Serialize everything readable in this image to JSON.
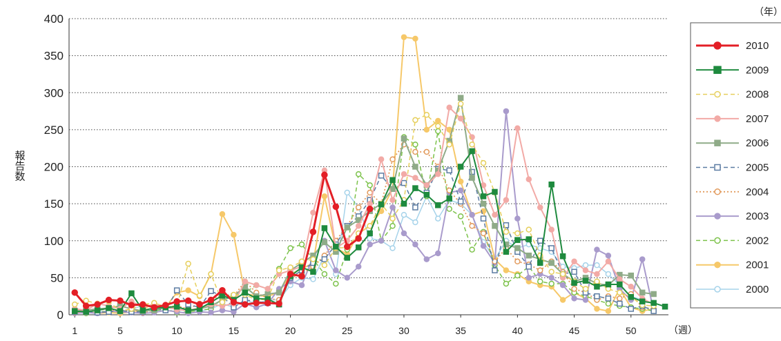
{
  "chart_data": {
    "type": "line",
    "y_label": "報告数",
    "x_label": "（週）",
    "legend_title": "（年）",
    "x": [
      1,
      2,
      3,
      4,
      5,
      6,
      7,
      8,
      9,
      10,
      11,
      12,
      13,
      14,
      15,
      16,
      17,
      18,
      19,
      20,
      21,
      22,
      23,
      24,
      25,
      26,
      27,
      28,
      29,
      30,
      31,
      32,
      33,
      34,
      35,
      36,
      37,
      38,
      39,
      40,
      41,
      42,
      43,
      44,
      45,
      46,
      47,
      48,
      49,
      50,
      51,
      52,
      53
    ],
    "xlim": [
      0.5,
      53.3
    ],
    "xticks": [
      1,
      5,
      10,
      15,
      20,
      25,
      30,
      35,
      40,
      45,
      50
    ],
    "ylim": [
      0,
      400
    ],
    "yticks": [
      0,
      50,
      100,
      150,
      200,
      250,
      300,
      350,
      400
    ],
    "grid": true,
    "legend": "right",
    "series": [
      {
        "name": "2010",
        "color": "#e31f26",
        "style": "solid",
        "marker": "circle",
        "filled": true,
        "width": 3,
        "values": [
          30,
          12,
          14,
          20,
          19,
          13,
          14,
          10,
          13,
          18,
          19,
          14,
          20,
          33,
          17,
          14,
          16,
          16,
          15,
          55,
          52,
          112,
          189,
          146,
          92,
          103,
          143,
          null,
          null,
          null,
          null,
          null,
          null,
          null,
          null,
          null,
          null,
          null,
          null,
          null,
          null,
          null,
          null,
          null,
          null,
          null,
          null,
          null,
          null,
          null,
          null,
          null,
          null
        ]
      },
      {
        "name": "2009",
        "color": "#1e8a3e",
        "style": "solid",
        "marker": "square",
        "filled": true,
        "width": 2,
        "values": [
          5,
          4,
          6,
          9,
          5,
          29,
          6,
          9,
          10,
          11,
          6,
          8,
          17,
          26,
          20,
          30,
          22,
          21,
          14,
          52,
          64,
          58,
          117,
          92,
          77,
          91,
          110,
          149,
          182,
          150,
          171,
          162,
          148,
          157,
          200,
          221,
          160,
          166,
          85,
          101,
          102,
          70,
          176,
          79,
          43,
          46,
          38,
          41,
          41,
          24,
          18,
          16,
          11
        ]
      },
      {
        "name": "2008",
        "color": "#e6cf5c",
        "style": "dashed",
        "marker": "circle",
        "filled": false,
        "width": 1.5,
        "values": [
          14,
          19,
          15,
          18,
          5,
          8,
          14,
          16,
          11,
          12,
          69,
          26,
          55,
          17,
          27,
          27,
          20,
          21,
          60,
          64,
          72,
          75,
          67,
          90,
          91,
          110,
          120,
          150,
          130,
          155,
          263,
          270,
          255,
          230,
          285,
          230,
          205,
          165,
          112,
          110,
          115,
          80,
          58,
          55,
          45,
          35,
          45,
          35,
          30,
          24,
          13,
          12,
          null
        ]
      },
      {
        "name": "2007",
        "color": "#f2aaa6",
        "style": "solid",
        "marker": "circle",
        "filled": true,
        "width": 2,
        "values": [
          8,
          6,
          15,
          12,
          8,
          18,
          10,
          14,
          12,
          7,
          6,
          9,
          14,
          12,
          15,
          45,
          40,
          35,
          55,
          60,
          65,
          138,
          195,
          90,
          100,
          120,
          150,
          210,
          155,
          190,
          185,
          175,
          190,
          280,
          265,
          240,
          175,
          135,
          155,
          252,
          183,
          145,
          115,
          50,
          72,
          60,
          55,
          72,
          48,
          38,
          22,
          14,
          null
        ]
      },
      {
        "name": "2006",
        "color": "#8fab88",
        "style": "solid",
        "marker": "square",
        "filled": true,
        "width": 2,
        "values": [
          5,
          6,
          8,
          9,
          12,
          8,
          5,
          6,
          10,
          8,
          5,
          8,
          12,
          20,
          25,
          38,
          25,
          28,
          30,
          60,
          70,
          80,
          98,
          85,
          118,
          128,
          140,
          150,
          170,
          238,
          200,
          175,
          195,
          235,
          293,
          185,
          150,
          120,
          95,
          90,
          80,
          75,
          70,
          55,
          45,
          50,
          42,
          40,
          54,
          53,
          30,
          28,
          null
        ]
      },
      {
        "name": "2005",
        "color": "#5b7ba2",
        "style": "dashed",
        "marker": "square",
        "filled": false,
        "width": 1.5,
        "values": [
          4,
          5,
          3,
          4,
          6,
          4,
          4,
          8,
          6,
          33,
          14,
          10,
          32,
          25,
          10,
          20,
          18,
          16,
          14,
          50,
          60,
          70,
          75,
          95,
          120,
          133,
          155,
          188,
          170,
          178,
          145,
          165,
          197,
          195,
          153,
          193,
          130,
          60,
          121,
          85,
          65,
          100,
          90,
          55,
          58,
          30,
          25,
          22,
          15,
          8,
          12,
          5,
          null
        ]
      },
      {
        "name": "2004",
        "color": "#e29a5c",
        "style": "dotted",
        "marker": "circle",
        "filled": false,
        "width": 1.8,
        "values": [
          3,
          5,
          8,
          6,
          5,
          7,
          3,
          6,
          10,
          12,
          8,
          15,
          18,
          28,
          25,
          45,
          30,
          22,
          20,
          50,
          55,
          65,
          80,
          100,
          120,
          145,
          165,
          150,
          210,
          230,
          220,
          220,
          200,
          168,
          150,
          120,
          110,
          72,
          90,
          72,
          68,
          60,
          72,
          58,
          35,
          30,
          20,
          25,
          22,
          28,
          10,
          8,
          null
        ]
      },
      {
        "name": "2003",
        "color": "#a99bcc",
        "style": "solid",
        "marker": "circle",
        "filled": true,
        "width": 2,
        "values": [
          2,
          3,
          2,
          5,
          4,
          3,
          2,
          3,
          6,
          4,
          2,
          4,
          3,
          6,
          4,
          15,
          10,
          15,
          35,
          45,
          40,
          78,
          100,
          60,
          50,
          65,
          95,
          100,
          145,
          110,
          95,
          75,
          83,
          165,
          168,
          135,
          93,
          70,
          275,
          130,
          50,
          55,
          50,
          40,
          22,
          20,
          88,
          80,
          35,
          20,
          75,
          5,
          null
        ]
      },
      {
        "name": "2002",
        "color": "#7cc24a",
        "style": "dashed",
        "marker": "circle",
        "filled": false,
        "width": 1.5,
        "values": [
          3,
          2,
          5,
          4,
          5,
          4,
          6,
          5,
          8,
          3,
          4,
          6,
          8,
          22,
          26,
          30,
          40,
          35,
          62,
          90,
          95,
          75,
          55,
          42,
          88,
          190,
          175,
          100,
          120,
          240,
          230,
          160,
          248,
          143,
          133,
          88,
          112,
          67,
          42,
          53,
          65,
          45,
          42,
          42,
          30,
          25,
          20,
          15,
          12,
          10,
          8,
          5,
          null
        ]
      },
      {
        "name": "2001",
        "color": "#f6c869",
        "style": "solid",
        "marker": "circle",
        "filled": true,
        "width": 2,
        "values": [
          3,
          5,
          2,
          3,
          2,
          4,
          7,
          16,
          10,
          30,
          33,
          25,
          55,
          136,
          108,
          28,
          26,
          25,
          30,
          55,
          62,
          70,
          160,
          90,
          82,
          110,
          120,
          140,
          170,
          375,
          373,
          250,
          262,
          250,
          180,
          135,
          140,
          75,
          60,
          55,
          45,
          40,
          38,
          20,
          30,
          22,
          8,
          5,
          35,
          10,
          5,
          8,
          null
        ]
      },
      {
        "name": "2000",
        "color": "#a6d3ea",
        "style": "solid",
        "marker": "circle",
        "filled": false,
        "width": 1.5,
        "values": [
          2,
          3,
          4,
          5,
          3,
          8,
          12,
          10,
          9,
          11,
          6,
          5,
          8,
          15,
          10,
          20,
          15,
          20,
          20,
          40,
          50,
          48,
          80,
          55,
          165,
          145,
          103,
          100,
          90,
          135,
          125,
          160,
          130,
          155,
          150,
          135,
          98,
          75,
          100,
          90,
          95,
          90,
          85,
          65,
          63,
          67,
          67,
          55,
          40,
          25,
          20,
          15,
          null
        ]
      }
    ]
  }
}
